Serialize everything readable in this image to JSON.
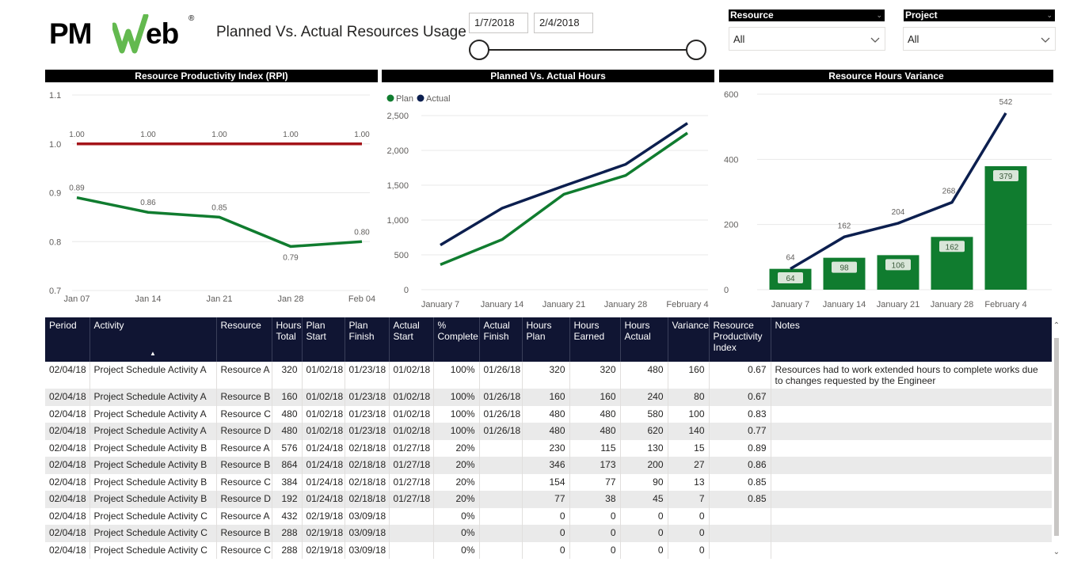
{
  "header": {
    "logo_text": "PMWeb",
    "logo_reg": "®",
    "title": "Planned Vs. Actual Resources Usage",
    "date_start": "1/7/2018",
    "date_end": "2/4/2018"
  },
  "slicers": {
    "resource": {
      "label": "Resource",
      "value": "All"
    },
    "project": {
      "label": "Project",
      "value": "All"
    }
  },
  "colors": {
    "green": "#107c2f",
    "navy": "#0c1f4f",
    "red": "#a4141a",
    "header_bg": "#101533"
  },
  "chart_data": [
    {
      "id": "rpi",
      "type": "line",
      "title": "Resource Productivity Index (RPI)",
      "categories": [
        "Jan 07",
        "Jan 14",
        "Jan 21",
        "Jan 28",
        "Feb 04"
      ],
      "series": [
        {
          "values": [
            1.0,
            1.0,
            1.0,
            1.0,
            1.0
          ],
          "labels": [
            "1.00",
            "1.00",
            "1.00",
            "1.00",
            "1.00"
          ],
          "color": "#a4141a"
        },
        {
          "values": [
            0.89,
            0.86,
            0.85,
            0.79,
            0.8
          ],
          "labels": [
            "0.89",
            "0.86",
            "0.85",
            "0.79",
            "0.80"
          ],
          "color": "#107c2f"
        }
      ],
      "ylim": [
        0.7,
        1.1
      ],
      "yticks": [
        0.7,
        0.8,
        0.9,
        1.0,
        1.1
      ],
      "ytick_labels": [
        "0.7",
        "0.8",
        "0.9",
        "1.0",
        "1.1"
      ],
      "grid": true
    },
    {
      "id": "pva",
      "type": "line",
      "title": "Planned Vs. Actual Hours",
      "categories": [
        "January 7",
        "January 14",
        "January 21",
        "January 28",
        "February 4"
      ],
      "series": [
        {
          "name": "Plan",
          "values": [
            360,
            720,
            1370,
            1640,
            2250
          ],
          "color": "#107c2f"
        },
        {
          "name": "Actual",
          "values": [
            640,
            1170,
            1490,
            1800,
            2390
          ],
          "color": "#0c1f4f"
        }
      ],
      "legend": "top-left",
      "ylim": [
        0,
        2500
      ],
      "yticks": [
        0,
        500,
        1000,
        1500,
        2000,
        2500
      ],
      "ytick_labels": [
        "0",
        "500",
        "1,000",
        "1,500",
        "2,000",
        "2,500"
      ],
      "grid": true
    },
    {
      "id": "rhv",
      "type": "bar",
      "title": "Resource Hours Variance",
      "categories": [
        "January 7",
        "January 14",
        "January 21",
        "January 28",
        "February 4"
      ],
      "bars": {
        "values": [
          64,
          98,
          106,
          162,
          379
        ],
        "labels": [
          "64",
          "98",
          "106",
          "162",
          "379"
        ],
        "color": "#107c2f"
      },
      "line": {
        "values": [
          64,
          162,
          204,
          268,
          542
        ],
        "labels": [
          "64",
          "162",
          "204",
          "268",
          "542"
        ],
        "color": "#0c1f4f"
      },
      "ylim": [
        0,
        600
      ],
      "yticks": [
        0,
        200,
        400,
        600
      ],
      "ytick_labels": [
        "0",
        "200",
        "400",
        "600"
      ],
      "grid": true
    }
  ],
  "table": {
    "columns": [
      "Period",
      "Activity",
      "Resource",
      "Hours Total",
      "Plan Start",
      "Plan Finish",
      "Actual Start",
      "% Complete",
      "Actual Finish",
      "Hours Plan",
      "Hours Earned",
      "Hours Actual",
      "Variance",
      "Resource Productivity Index",
      "Notes"
    ],
    "sort_indicator": "▲",
    "rows": [
      [
        "02/04/18",
        "Project Schedule Activity A",
        "Resource A",
        "320",
        "01/02/18",
        "01/23/18",
        "01/02/18",
        "100%",
        "01/26/18",
        "320",
        "320",
        "480",
        "160",
        "0.67",
        "Resources had to work extended hours to complete works due to changes requested by the Engineer"
      ],
      [
        "02/04/18",
        "Project Schedule Activity A",
        "Resource B",
        "160",
        "01/02/18",
        "01/23/18",
        "01/02/18",
        "100%",
        "01/26/18",
        "160",
        "160",
        "240",
        "80",
        "0.67",
        ""
      ],
      [
        "02/04/18",
        "Project Schedule Activity A",
        "Resource C",
        "480",
        "01/02/18",
        "01/23/18",
        "01/02/18",
        "100%",
        "01/26/18",
        "480",
        "480",
        "580",
        "100",
        "0.83",
        ""
      ],
      [
        "02/04/18",
        "Project Schedule Activity A",
        "Resource D",
        "480",
        "01/02/18",
        "01/23/18",
        "01/02/18",
        "100%",
        "01/26/18",
        "480",
        "480",
        "620",
        "140",
        "0.77",
        ""
      ],
      [
        "02/04/18",
        "Project Schedule Activity B",
        "Resource A",
        "576",
        "01/24/18",
        "02/18/18",
        "01/27/18",
        "20%",
        "",
        "230",
        "115",
        "130",
        "15",
        "0.89",
        ""
      ],
      [
        "02/04/18",
        "Project Schedule Activity B",
        "Resource B",
        "864",
        "01/24/18",
        "02/18/18",
        "01/27/18",
        "20%",
        "",
        "346",
        "173",
        "200",
        "27",
        "0.86",
        ""
      ],
      [
        "02/04/18",
        "Project Schedule Activity B",
        "Resource C",
        "384",
        "01/24/18",
        "02/18/18",
        "01/27/18",
        "20%",
        "",
        "154",
        "77",
        "90",
        "13",
        "0.85",
        ""
      ],
      [
        "02/04/18",
        "Project Schedule Activity B",
        "Resource D",
        "192",
        "01/24/18",
        "02/18/18",
        "01/27/18",
        "20%",
        "",
        "77",
        "38",
        "45",
        "7",
        "0.85",
        ""
      ],
      [
        "02/04/18",
        "Project Schedule Activity C",
        "Resource A",
        "432",
        "02/19/18",
        "03/09/18",
        "",
        "0%",
        "",
        "0",
        "0",
        "0",
        "0",
        "",
        ""
      ],
      [
        "02/04/18",
        "Project Schedule Activity C",
        "Resource B",
        "288",
        "02/19/18",
        "03/09/18",
        "",
        "0%",
        "",
        "0",
        "0",
        "0",
        "0",
        "",
        ""
      ],
      [
        "02/04/18",
        "Project Schedule Activity C",
        "Resource C",
        "288",
        "02/19/18",
        "03/09/18",
        "",
        "0%",
        "",
        "0",
        "0",
        "0",
        "0",
        "",
        ""
      ]
    ]
  }
}
